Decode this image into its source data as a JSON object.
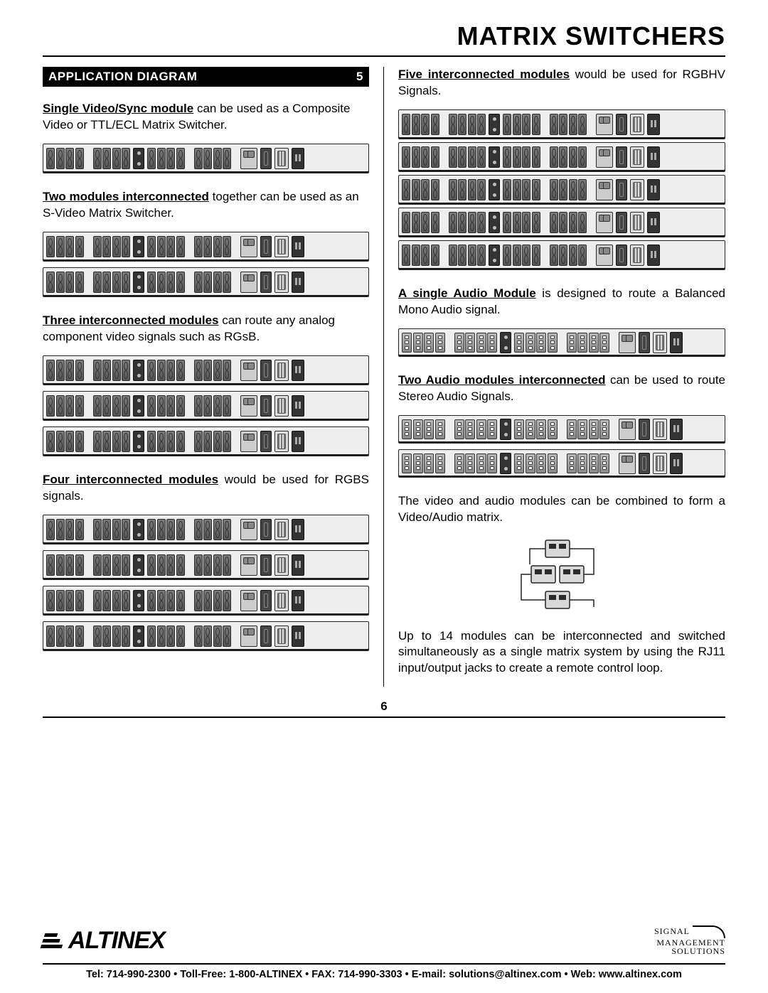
{
  "header": {
    "title": "MATRIX SWITCHERS"
  },
  "section": {
    "label": "APPLICATION DIAGRAM",
    "number": "5"
  },
  "left": {
    "p1": {
      "lead": "Single Video/Sync module",
      "text": " can be used as a Composite Video or TTL/ECL Matrix Switcher."
    },
    "p2": {
      "lead": "Two modules interconnected",
      "text": " together can be used as an S-Video Matrix Switcher."
    },
    "p3": {
      "lead": "Three interconnected modules",
      "text": " can route any analog component video signals such as RGsB."
    },
    "p4": {
      "lead": "Four interconnected modules",
      "text": " would be used for RGBS signals."
    }
  },
  "right": {
    "p1": {
      "lead": "Five interconnected modules",
      "text": " would be used for RGBHV Signals."
    },
    "p2": {
      "lead": "A single Audio Module",
      "text": " is designed to route a Balanced Mono Audio signal."
    },
    "p3": {
      "lead": "Two Audio modules interconnected",
      "text": " can be used to route Stereo Audio Signals."
    },
    "p4": "The video and audio modules can be combined to form a Video/Audio matrix.",
    "p5": "Up to 14 modules can be interconnected and switched simultaneously as a single matrix system by using the RJ11 input/output jacks to create a remote control loop."
  },
  "stacks": {
    "left1": 1,
    "left2": 2,
    "left3": 3,
    "left4": 4,
    "right1": 5,
    "right2_audio": 1,
    "right3_audio": 2
  },
  "module_style": {
    "bg": "#eeeeee",
    "border": "#222222",
    "conn_bg_top": "#7a7a7a",
    "conn_bg_bot": "#555555",
    "groups_of_4": 2,
    "mid_block": true,
    "groups_of_4_after": 2,
    "tail_sequence": [
      "tailA",
      "tailB",
      "tailC",
      "plug"
    ]
  },
  "audio_style": {
    "groups_of": 4,
    "blocks": 5,
    "tail_sequence": [
      "tailA",
      "tailB",
      "tailC",
      "plug"
    ]
  },
  "colors": {
    "text": "#000000",
    "bar_bg": "#000000",
    "bar_fg": "#ffffff",
    "rule": "#000000",
    "page_bg": "#ffffff"
  },
  "page_number": "6",
  "footer": {
    "brand": "ALTINEX",
    "tagline1": "SIGNAL",
    "tagline2": "MANAGEMENT",
    "tagline3": "SOLUTIONS",
    "contact": "Tel: 714-990-2300 • Toll-Free: 1-800-ALTINEX • FAX: 714-990-3303 • E-mail: solutions@altinex.com • Web: www.altinex.com"
  }
}
